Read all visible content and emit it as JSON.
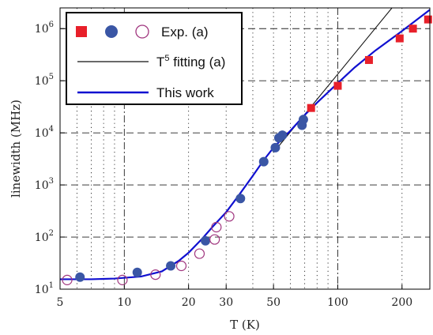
{
  "chart_data": {
    "type": "scatter",
    "title": "",
    "xlabel": "T (K)",
    "ylabel": "linewidth (MHz)",
    "x_scale": "log",
    "y_scale": "log",
    "xlim": [
      5,
      270
    ],
    "ylim": [
      10,
      2500000
    ],
    "grid": "dotted-minor, dash-dot-major",
    "legend_position": "top-left",
    "x_ticks": [
      {
        "value": 5,
        "label": "5"
      },
      {
        "value": 10,
        "label": "10"
      },
      {
        "value": 20,
        "label": "20"
      },
      {
        "value": 30,
        "label": "30"
      },
      {
        "value": 50,
        "label": "50"
      },
      {
        "value": 100,
        "label": "100"
      },
      {
        "value": 200,
        "label": "200"
      }
    ],
    "y_ticks": [
      {
        "value": 10,
        "base": "10",
        "exp": "1"
      },
      {
        "value": 100,
        "base": "10",
        "exp": "2"
      },
      {
        "value": 1000,
        "base": "10",
        "exp": "3"
      },
      {
        "value": 10000,
        "base": "10",
        "exp": "4"
      },
      {
        "value": 100000,
        "base": "10",
        "exp": "5"
      },
      {
        "value": 1000000,
        "base": "10",
        "exp": "6"
      }
    ],
    "series": [
      {
        "name": "Exp. (a)",
        "marker": "square",
        "color": "#e8202a",
        "points": [
          [
            75,
            30000
          ],
          [
            100,
            80000
          ],
          [
            140,
            250000
          ],
          [
            195,
            650000
          ],
          [
            225,
            1000000
          ],
          [
            265,
            1500000
          ]
        ]
      },
      {
        "name": "Exp. (a)",
        "marker": "circle-filled",
        "color": "#3a56a5",
        "points": [
          [
            6.2,
            17
          ],
          [
            11.5,
            21
          ],
          [
            16.5,
            28
          ],
          [
            24,
            85
          ],
          [
            35,
            550
          ],
          [
            45,
            2800
          ],
          [
            51,
            5200
          ],
          [
            53,
            8000
          ],
          [
            55,
            9000
          ],
          [
            68,
            14000
          ],
          [
            69,
            18000
          ]
        ]
      },
      {
        "name": "Exp. (a)",
        "marker": "circle-open",
        "color": "#a0357e",
        "points": [
          [
            5.4,
            15
          ],
          [
            9.8,
            15
          ],
          [
            14,
            19
          ],
          [
            18.5,
            28
          ],
          [
            22.5,
            48
          ],
          [
            26.5,
            90
          ],
          [
            27,
            155
          ],
          [
            31,
            250
          ]
        ]
      },
      {
        "name": "T⁵ fitting (a)",
        "type": "line",
        "color": "#111111",
        "points": [
          [
            50,
            4200
          ],
          [
            100,
            134000
          ],
          [
            150,
            1020000
          ],
          [
            200,
            4300000
          ]
        ]
      },
      {
        "name": "This work",
        "type": "line",
        "color": "#1010d0",
        "points": [
          [
            5,
            15.5
          ],
          [
            7,
            15.5
          ],
          [
            9,
            16
          ],
          [
            12,
            17.5
          ],
          [
            15,
            22
          ],
          [
            18,
            35
          ],
          [
            20,
            50
          ],
          [
            23,
            90
          ],
          [
            26,
            160
          ],
          [
            30,
            300
          ],
          [
            35,
            700
          ],
          [
            40,
            1500
          ],
          [
            45,
            3000
          ],
          [
            50,
            5200
          ],
          [
            60,
            11000
          ],
          [
            70,
            22000
          ],
          [
            80,
            38000
          ],
          [
            100,
            90000
          ],
          [
            120,
            180000
          ],
          [
            150,
            380000
          ],
          [
            200,
            900000
          ],
          [
            270,
            2300000
          ]
        ]
      }
    ],
    "legend": [
      {
        "label": "Exp. (a)"
      },
      {
        "label": "T",
        "sup": "5",
        "suffix": " fitting (a)"
      },
      {
        "label": "This work"
      }
    ]
  }
}
